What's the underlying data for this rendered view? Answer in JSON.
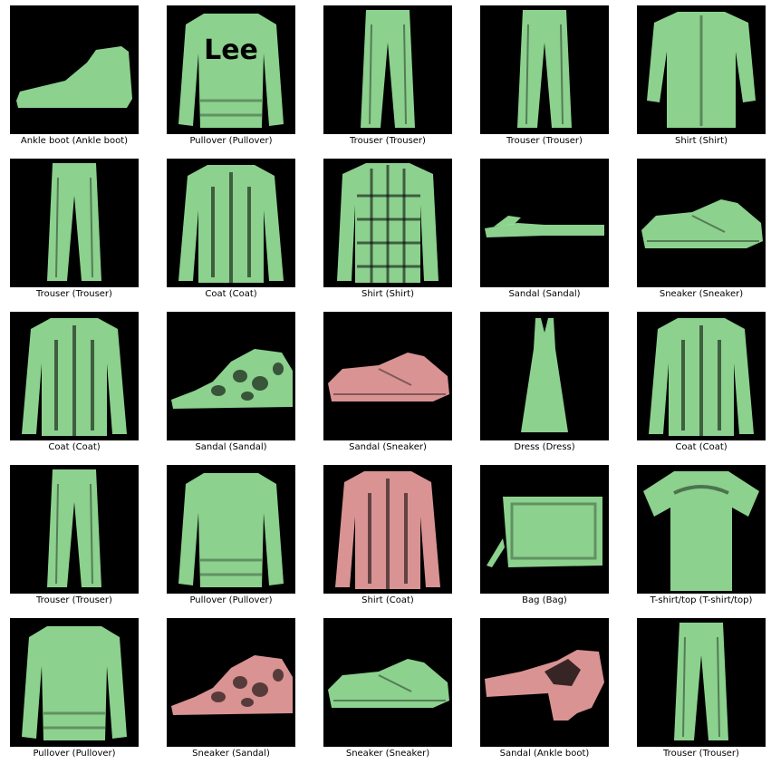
{
  "colors": {
    "correct": "#98e39a",
    "incorrect": "#eba0a0",
    "tile_background": "#000000"
  },
  "grid": {
    "rows": 5,
    "columns": 5,
    "items": [
      {
        "label": "Ankle boot (Ankle boot)",
        "correct": true,
        "icon": "ankle-boot-icon"
      },
      {
        "label": "Pullover (Pullover)",
        "correct": true,
        "icon": "pullover-icon",
        "print": "Lee"
      },
      {
        "label": "Trouser (Trouser)",
        "correct": true,
        "icon": "trouser-icon"
      },
      {
        "label": "Trouser (Trouser)",
        "correct": true,
        "icon": "trouser-icon"
      },
      {
        "label": "Shirt (Shirt)",
        "correct": true,
        "icon": "shirt-icon"
      },
      {
        "label": "Trouser (Trouser)",
        "correct": true,
        "icon": "trouser-icon"
      },
      {
        "label": "Coat (Coat)",
        "correct": true,
        "icon": "coat-icon"
      },
      {
        "label": "Shirt (Shirt)",
        "correct": true,
        "icon": "plaid-shirt-icon"
      },
      {
        "label": "Sandal (Sandal)",
        "correct": true,
        "icon": "flip-flop-icon"
      },
      {
        "label": "Sneaker (Sneaker)",
        "correct": true,
        "icon": "sneaker-icon"
      },
      {
        "label": "Coat (Coat)",
        "correct": true,
        "icon": "coat-icon"
      },
      {
        "label": "Sandal (Sandal)",
        "correct": true,
        "icon": "sandal-icon"
      },
      {
        "label": "Sandal (Sneaker)",
        "correct": false,
        "icon": "sneaker-icon"
      },
      {
        "label": "Dress (Dress)",
        "correct": true,
        "icon": "dress-icon"
      },
      {
        "label": "Coat (Coat)",
        "correct": true,
        "icon": "coat-icon"
      },
      {
        "label": "Trouser (Trouser)",
        "correct": true,
        "icon": "trouser-icon"
      },
      {
        "label": "Pullover (Pullover)",
        "correct": true,
        "icon": "pullover-icon"
      },
      {
        "label": "Shirt (Coat)",
        "correct": false,
        "icon": "coat-icon"
      },
      {
        "label": "Bag (Bag)",
        "correct": true,
        "icon": "bag-icon"
      },
      {
        "label": "T-shirt/top (T-shirt/top)",
        "correct": true,
        "icon": "tshirt-icon"
      },
      {
        "label": "Pullover (Pullover)",
        "correct": true,
        "icon": "pullover-icon"
      },
      {
        "label": "Sneaker (Sandal)",
        "correct": false,
        "icon": "sandal-icon"
      },
      {
        "label": "Sneaker (Sneaker)",
        "correct": true,
        "icon": "sneaker-icon"
      },
      {
        "label": "Sandal (Ankle boot)",
        "correct": false,
        "icon": "heel-shoe-icon"
      },
      {
        "label": "Trouser (Trouser)",
        "correct": true,
        "icon": "trouser-icon"
      }
    ]
  }
}
